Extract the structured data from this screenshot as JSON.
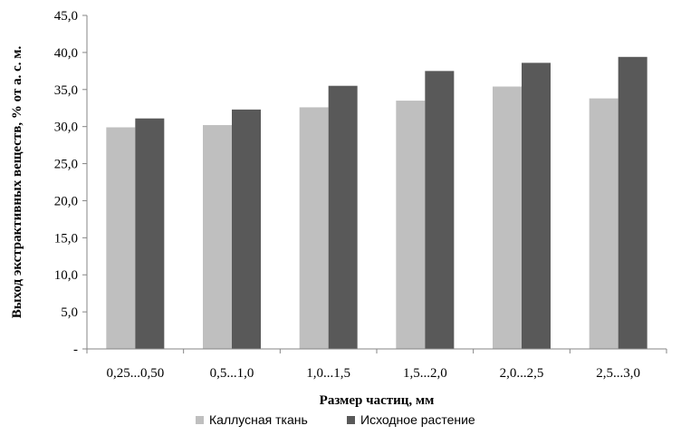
{
  "chart_data": {
    "type": "bar",
    "title": "",
    "xlabel": "Размер частиц, мм",
    "ylabel": "Выход экстрактивных веществ, % от а. с. м.",
    "categories": [
      "0,25...0,50",
      "0,5...1,0",
      "1,0...1,5",
      "1,5...2,0",
      "2,0...2,5",
      "2,5...3,0"
    ],
    "series": [
      {
        "name": "Каллусная ткань",
        "color": "#bfbfbf",
        "values": [
          29.9,
          30.2,
          32.6,
          33.5,
          35.4,
          33.8
        ]
      },
      {
        "name": "Исходное растение",
        "color": "#595959",
        "values": [
          31.1,
          32.3,
          35.5,
          37.5,
          38.6,
          39.4
        ]
      }
    ],
    "ylim": [
      0,
      45
    ],
    "yticks": [
      0,
      5,
      10,
      15,
      20,
      25,
      30,
      35,
      40,
      45
    ],
    "ytick_labels": [
      "-",
      "5,0",
      "10,0",
      "15,0",
      "20,0",
      "25,0",
      "30,0",
      "35,0",
      "40,0",
      "45,0"
    ],
    "grid": false,
    "legend_position": "bottom"
  }
}
